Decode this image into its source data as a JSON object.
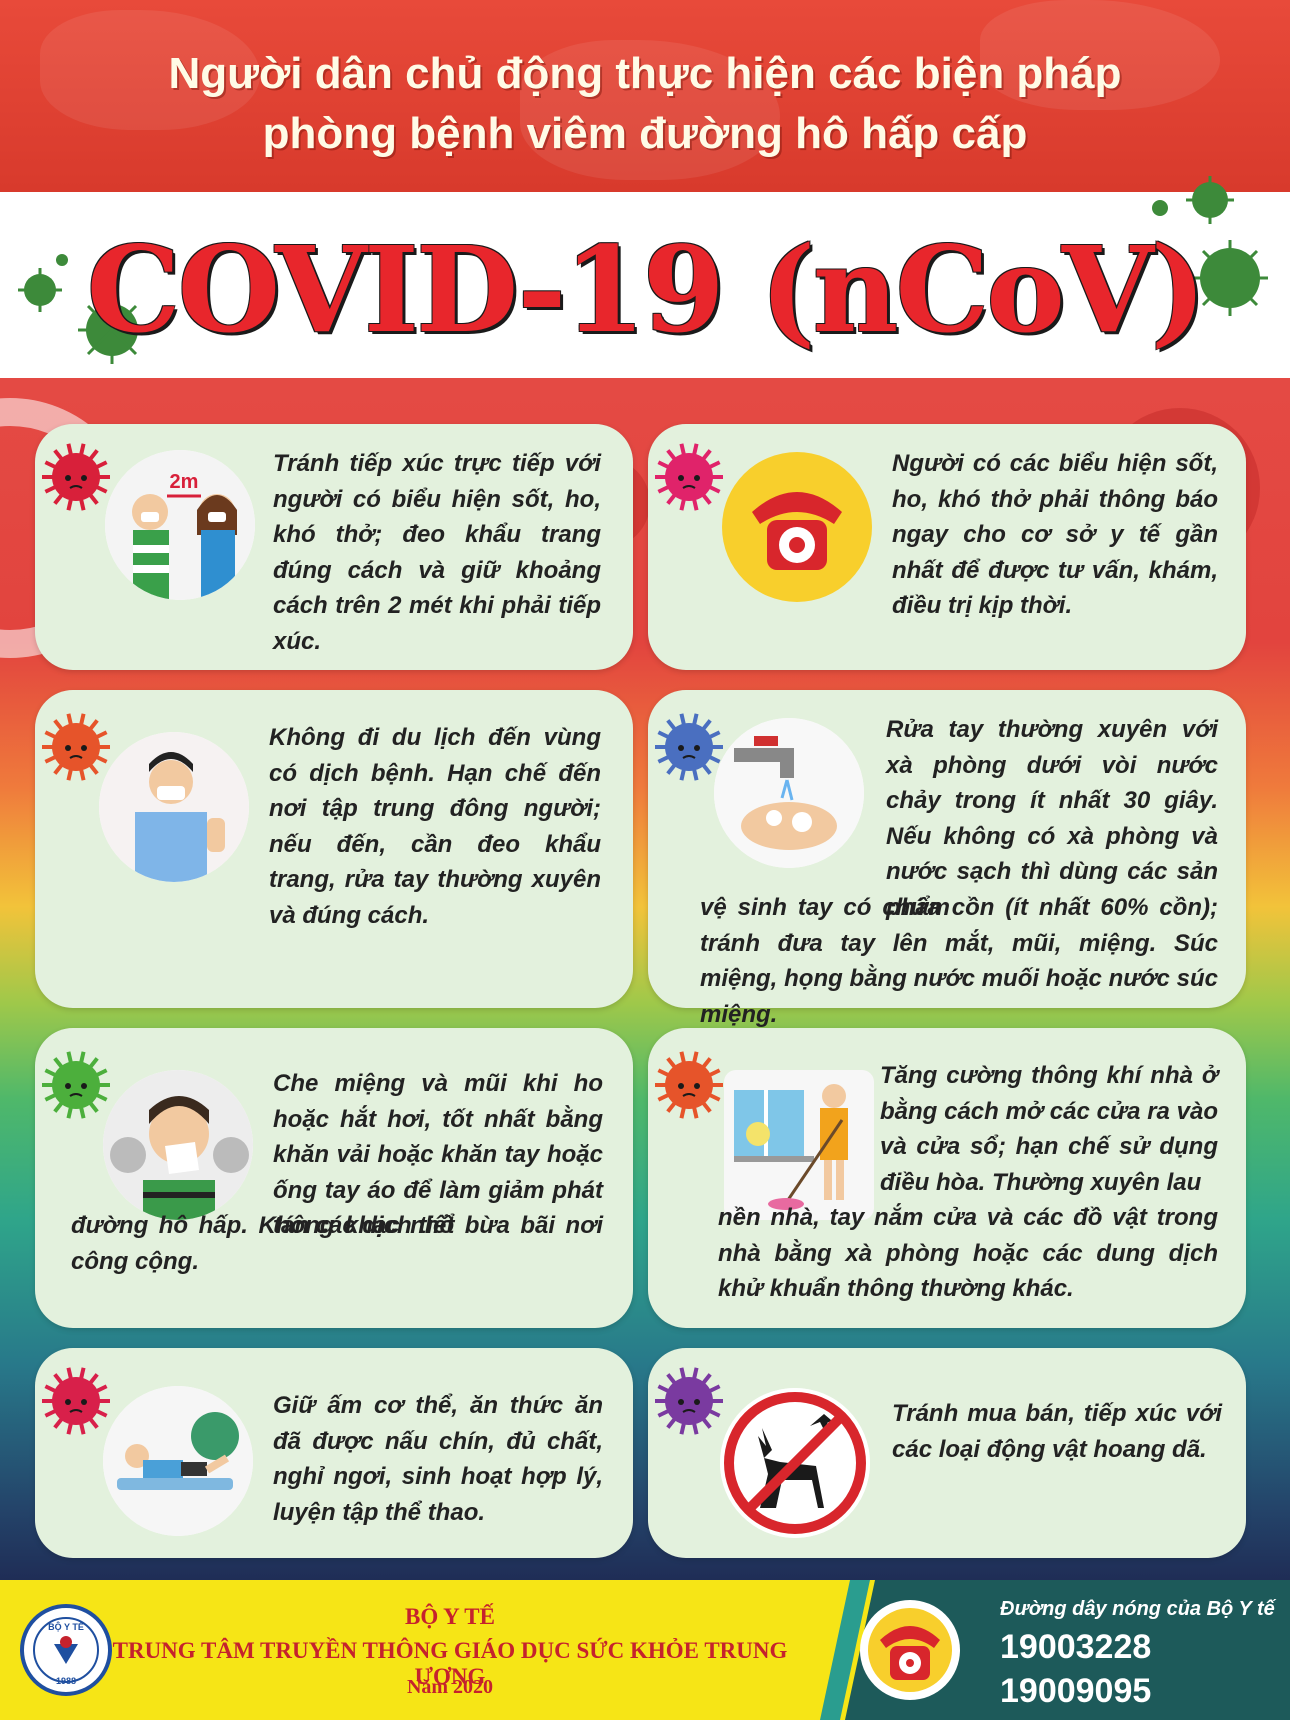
{
  "header": {
    "line1": "Người dân chủ động thực hiện các biện pháp",
    "line2": "phòng bệnh viêm đường hô hấp cấp",
    "title": "COVID-19 (nCoV)"
  },
  "colors": {
    "header_red": "#e84a3a",
    "title_red": "#e8262c",
    "card_bg": "#e3f1dd",
    "footer_yellow": "#f6e516",
    "footer_teal": "#1d5a5a",
    "footer_text_red": "#c5222d"
  },
  "cards": [
    {
      "icon": "distance-masks-icon",
      "illus_label": "2m",
      "text": "Tránh tiếp xúc trực tiếp với người có biểu hiện sốt, ho, khó thở; đeo khẩu trang đúng cách và giữ khoảng cách trên 2 mét khi phải tiếp xúc.",
      "badge_color": "#d8203a"
    },
    {
      "icon": "red-telephone-icon",
      "text": "Người có các biểu hiện sốt, ho, khó thở phải thông báo ngay cho cơ sở y tế gần nhất để được tư vấn, khám, điều trị kịp thời.",
      "badge_color": "#e0236a"
    },
    {
      "icon": "man-with-mask-stop-hand-icon",
      "text": "Không đi du lịch đến vùng có dịch bệnh. Hạn chế đến nơi tập trung đông người; nếu đến, cần đeo khẩu trang, rửa tay thường xuyên và đúng cách.",
      "badge_color": "#e6542a"
    },
    {
      "icon": "hand-washing-tap-icon",
      "text_main": "Rửa tay thường xuyên với xà phòng dưới vòi nước chảy trong ít nhất 30 giây. Nếu không có xà phòng và nước sạch thì dùng các sản phẩm",
      "text_tail": "vệ sinh tay có chứa cồn (ít nhất 60% cồn); tránh đưa tay lên mắt, mũi, miệng. Súc miệng, họng bằng nước muối hoặc nước súc miệng.",
      "badge_color": "#4a6fc0"
    },
    {
      "icon": "sneezing-man-tissue-icon",
      "text_main": "Che miệng và mũi khi ho hoặc hắt hơi, tốt nhất bằng khăn vải hoặc khăn tay hoặc ống tay áo để làm giảm phát tán các dịch tiết",
      "text_tail": "đường hô hấp. Không khạc nhổ bừa bãi nơi công cộng.",
      "badge_color": "#4caf3c"
    },
    {
      "icon": "woman-mopping-window-icon",
      "text_main": "Tăng cường thông khí nhà ở bằng cách mở các cửa ra vào và cửa sổ; hạn chế sử dụng điều hòa. Thường xuyên lau",
      "text_tail": "nền nhà, tay nắm cửa và các đồ vật trong nhà bằng xà phòng hoặc các dung dịch khử khuẩn thông thường khác.",
      "badge_color": "#e6542a"
    },
    {
      "icon": "man-exercising-ball-icon",
      "text": "Giữ ấm cơ thể, ăn thức ăn đã được nấu chín, đủ chất, nghỉ ngơi, sinh hoạt hợp lý, luyện tập thể thao.",
      "badge_color": "#d8204a"
    },
    {
      "icon": "no-wild-animals-icon",
      "text": "Tránh mua bán, tiếp xúc với các loại động vật hoang dã.",
      "badge_color": "#7a3aa0"
    }
  ],
  "footer": {
    "ministry": "BỘ Y TẾ",
    "center": "TRUNG TÂM TRUYỀN THÔNG GIÁO DỤC SỨC KHỎE TRUNG ƯƠNG",
    "year": "Năm 2020",
    "hotline_label": "Đường dây nóng của Bộ Y tế",
    "hotline_1": "19003228",
    "hotline_2": "19009095",
    "logo_text": "BỘ Y TẾ",
    "logo_year": "1988"
  }
}
